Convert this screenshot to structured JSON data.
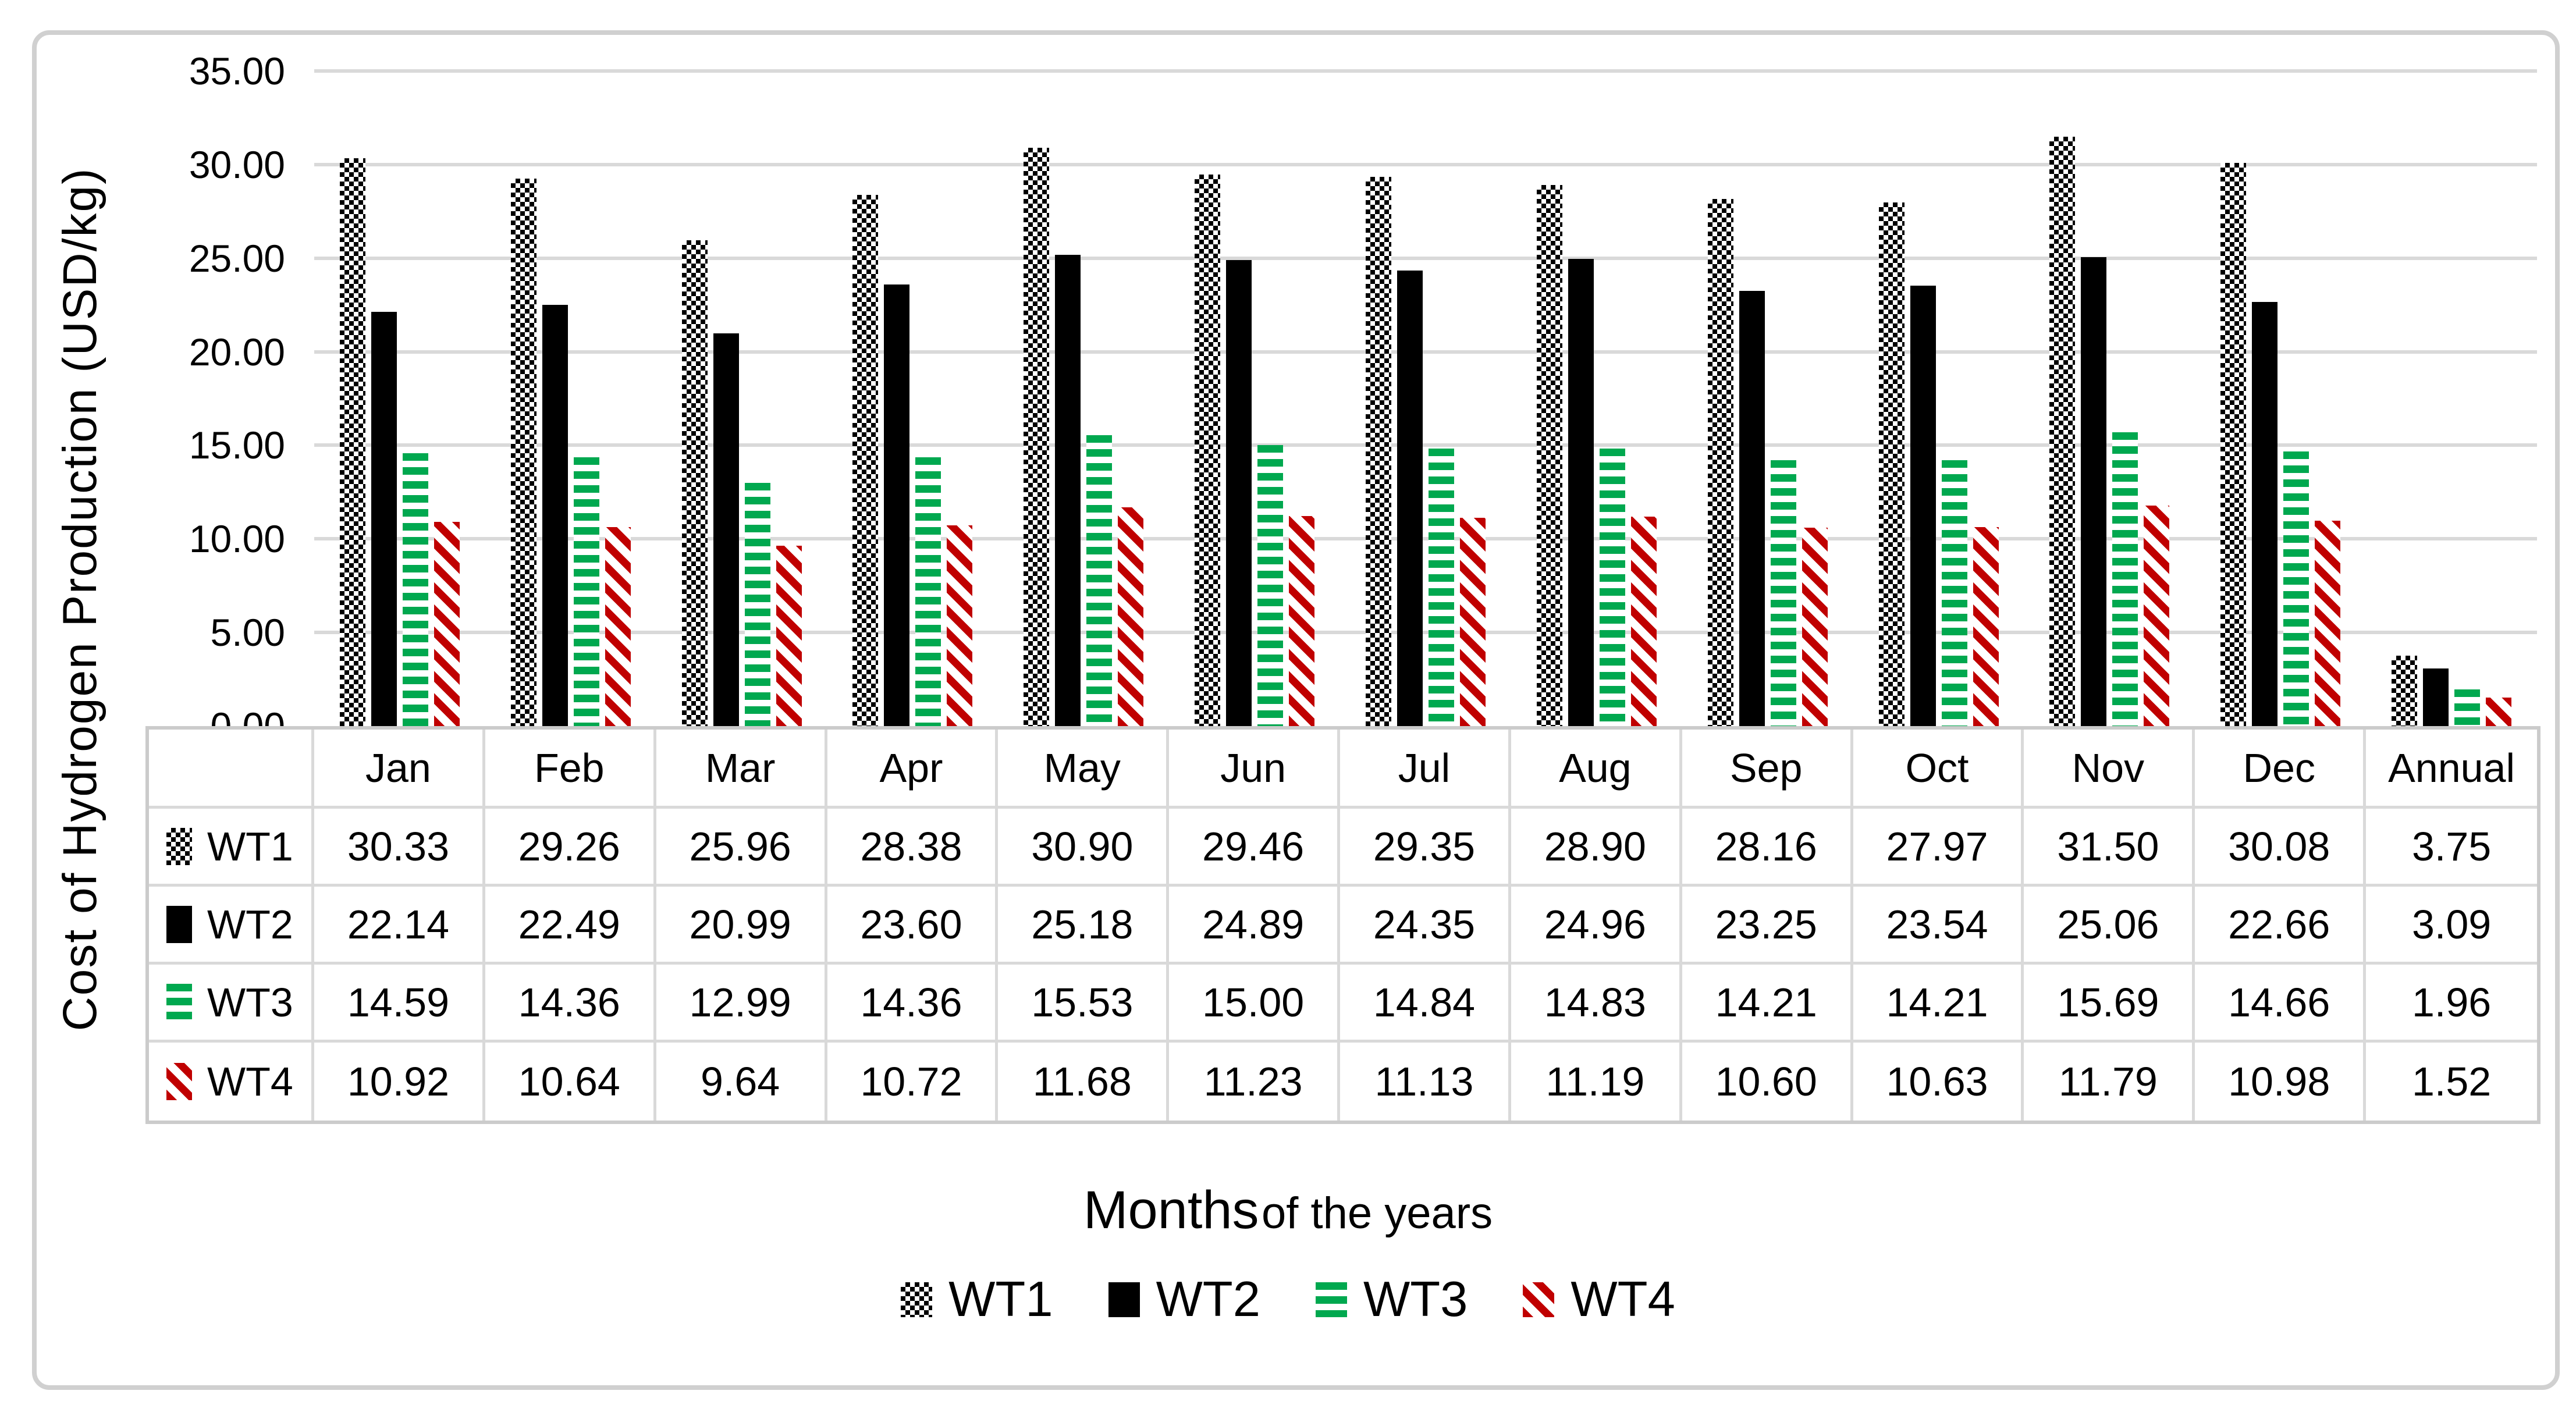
{
  "y_axis": {
    "title": "Cost of Hydrogen Production (USD/kg)",
    "tick_labels": [
      "35.00",
      "30.00",
      "25.00",
      "20.00",
      "15.00",
      "10.00",
      "5.00",
      "0.00"
    ]
  },
  "x_axis": {
    "title_primary": "Months",
    "title_secondary": "of the years"
  },
  "legend": {
    "items": [
      "WT1",
      "WT2",
      "WT3",
      "WT4"
    ]
  },
  "colors": {
    "wt1": "#000000",
    "wt2": "#000000",
    "wt3": "#00A84F",
    "wt4": "#C00000",
    "gridline": "#D9D9D9",
    "table_border": "#D9D9D9",
    "frame_border": "#D0D0D0"
  },
  "chart_data": {
    "type": "bar",
    "title": "",
    "xlabel": "Months of the years",
    "ylabel": "Cost of Hydrogen Production (USD/kg)",
    "ylim": [
      0,
      35
    ],
    "ytick_step": 5,
    "grid": true,
    "legend_position": "bottom",
    "value_format_decimals": 2,
    "categories": [
      "Jan",
      "Feb",
      "Mar",
      "Apr",
      "May",
      "Jun",
      "Jul",
      "Aug",
      "Sep",
      "Oct",
      "Nov",
      "Dec",
      "Annual"
    ],
    "series": [
      {
        "name": "WT1",
        "pattern": "checkerboard",
        "color": "#000000",
        "values": [
          30.33,
          29.26,
          25.96,
          28.38,
          30.9,
          29.46,
          29.35,
          28.9,
          28.16,
          27.97,
          31.5,
          30.08,
          3.75
        ]
      },
      {
        "name": "WT2",
        "pattern": "solid",
        "color": "#000000",
        "values": [
          22.14,
          22.49,
          20.99,
          23.6,
          25.18,
          24.89,
          24.35,
          24.96,
          23.25,
          23.54,
          25.06,
          22.66,
          3.09
        ]
      },
      {
        "name": "WT3",
        "pattern": "horizontal-dash",
        "color": "#00A84F",
        "values": [
          14.59,
          14.36,
          12.99,
          14.36,
          15.53,
          15.0,
          14.84,
          14.83,
          14.21,
          14.21,
          15.69,
          14.66,
          1.96
        ]
      },
      {
        "name": "WT4",
        "pattern": "diagonal-stripe",
        "color": "#C00000",
        "values": [
          10.92,
          10.64,
          9.64,
          10.72,
          11.68,
          11.23,
          11.13,
          11.19,
          10.6,
          10.63,
          11.79,
          10.98,
          1.52
        ]
      }
    ]
  }
}
